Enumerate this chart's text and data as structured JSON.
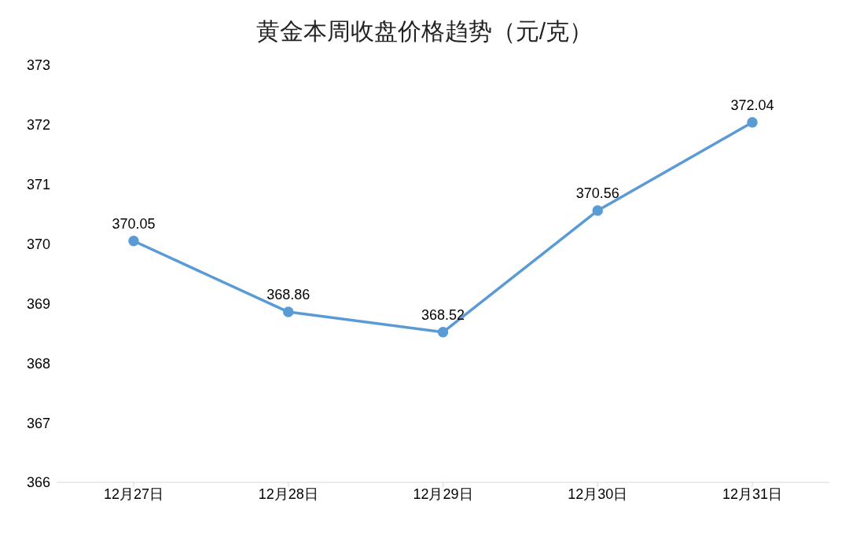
{
  "chart_data": {
    "type": "line",
    "title": "黄金本周收盘价格趋势（元/克）",
    "categories": [
      "12月27日",
      "12月28日",
      "12月29日",
      "12月30日",
      "12月31日"
    ],
    "series": [
      {
        "color": "#5b9bd5",
        "values": [
          370.05,
          368.86,
          368.52,
          370.56,
          372.04
        ]
      }
    ],
    "ylim": [
      366,
      373
    ],
    "yticks": [
      366,
      367,
      368,
      369,
      370,
      371,
      372,
      373
    ],
    "marker": "circle",
    "data_labels": true
  }
}
